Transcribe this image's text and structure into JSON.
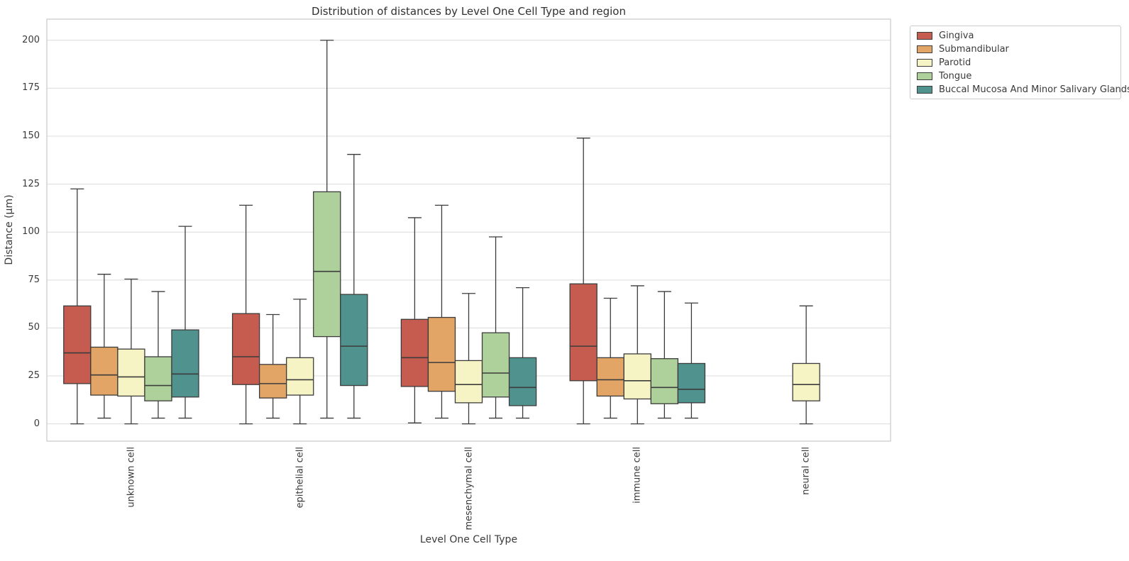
{
  "chart_data": {
    "type": "box",
    "title": "Distribution of distances by Level One Cell Type and region",
    "xlabel": "Level One Cell Type",
    "ylabel": "Distance (μm)",
    "categories": [
      "unknown cell",
      "epithelial cell",
      "mesenchymal cell",
      "immune cell",
      "neural cell"
    ],
    "yticks": [
      0,
      25,
      50,
      75,
      100,
      125,
      150,
      175,
      200
    ],
    "ylim": [
      -9,
      211
    ],
    "grid": "horizontal",
    "legend_position": "outside-upper-right",
    "colors": {
      "box_edge": "#3c3c3c",
      "gridline": "#dcdcdc",
      "spine": "#c9c9c9",
      "text": "#3a3a3a"
    },
    "series": [
      {
        "name": "Gingiva",
        "color": "#c65b50",
        "boxes": [
          {
            "whislo": 0,
            "q1": 21,
            "med": 37,
            "q3": 61.5,
            "whishi": 122.5
          },
          {
            "whislo": 0,
            "q1": 20.5,
            "med": 35,
            "q3": 57.5,
            "whishi": 114
          },
          {
            "whislo": 0.5,
            "q1": 19.5,
            "med": 34.5,
            "q3": 54.5,
            "whishi": 107.5
          },
          {
            "whislo": 0,
            "q1": 22.5,
            "med": 40.5,
            "q3": 73,
            "whishi": 149
          },
          null
        ]
      },
      {
        "name": "Submandibular",
        "color": "#e2a566",
        "boxes": [
          {
            "whislo": 3,
            "q1": 15,
            "med": 25.5,
            "q3": 40,
            "whishi": 78
          },
          {
            "whislo": 3,
            "q1": 13.5,
            "med": 21,
            "q3": 31,
            "whishi": 57
          },
          {
            "whislo": 3,
            "q1": 17,
            "med": 32,
            "q3": 55.5,
            "whishi": 114
          },
          {
            "whislo": 3,
            "q1": 14.5,
            "med": 23,
            "q3": 34.5,
            "whishi": 65.5
          },
          null
        ]
      },
      {
        "name": "Parotid",
        "color": "#f6f3c4",
        "boxes": [
          {
            "whislo": 0,
            "q1": 14.5,
            "med": 24.5,
            "q3": 39,
            "whishi": 75.5
          },
          {
            "whislo": 0,
            "q1": 15,
            "med": 23,
            "q3": 34.5,
            "whishi": 65
          },
          {
            "whislo": 0,
            "q1": 11,
            "med": 20.5,
            "q3": 33,
            "whishi": 68
          },
          {
            "whislo": 0,
            "q1": 13,
            "med": 22.5,
            "q3": 36.5,
            "whishi": 72
          },
          {
            "whislo": 0,
            "q1": 12,
            "med": 20.5,
            "q3": 31.5,
            "whishi": 61.5
          }
        ]
      },
      {
        "name": "Tongue",
        "color": "#aed19b",
        "boxes": [
          {
            "whislo": 3,
            "q1": 12,
            "med": 20,
            "q3": 35,
            "whishi": 69
          },
          {
            "whislo": 3,
            "q1": 45.5,
            "med": 79.5,
            "q3": 121,
            "whishi": 200
          },
          {
            "whislo": 3,
            "q1": 14,
            "med": 26.5,
            "q3": 47.5,
            "whishi": 97.5
          },
          {
            "whislo": 3,
            "q1": 10.5,
            "med": 19,
            "q3": 34,
            "whishi": 69
          },
          null
        ]
      },
      {
        "name": "Buccal Mucosa And Minor Salivary Glands",
        "color": "#4f928e",
        "boxes": [
          {
            "whislo": 3,
            "q1": 14,
            "med": 26,
            "q3": 49,
            "whishi": 103
          },
          {
            "whislo": 3,
            "q1": 20,
            "med": 40.5,
            "q3": 67.5,
            "whishi": 140.5
          },
          {
            "whislo": 3,
            "q1": 9.5,
            "med": 19,
            "q3": 34.5,
            "whishi": 71
          },
          {
            "whislo": 3,
            "q1": 11,
            "med": 18,
            "q3": 31.5,
            "whishi": 63
          },
          null
        ]
      }
    ]
  }
}
